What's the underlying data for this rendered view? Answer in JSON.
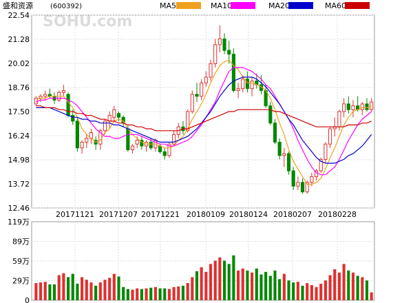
{
  "title": "盛和资源",
  "code": "(600392)",
  "watermark": "SOHU.com",
  "legend": [
    {
      "label": "MA5",
      "color": "#f0a020"
    },
    {
      "label": "MA10",
      "color": "#ff00ff"
    },
    {
      "label": "MA20",
      "color": "#0000cc"
    },
    {
      "label": "MA60",
      "color": "#cc0000"
    }
  ],
  "colors": {
    "up": "#e03030",
    "down": "#008800"
  },
  "chart_data": [
    {
      "type": "candlestick",
      "ylim": [
        12.46,
        22.54
      ],
      "yticks": [
        "22.54",
        "21.28",
        "20.02",
        "18.76",
        "17.50",
        "16.24",
        "14.98",
        "13.72",
        "12.46"
      ],
      "xticks": [
        "20171121",
        "20171207",
        "20171221",
        "20180109",
        "20180124",
        "20180207",
        "20180228"
      ],
      "grid": true,
      "ohlc": [
        [
          17.9,
          18.3,
          17.8,
          18.2
        ],
        [
          18.2,
          18.4,
          18.0,
          18.3
        ],
        [
          18.3,
          18.6,
          18.1,
          18.4
        ],
        [
          18.4,
          18.7,
          18.2,
          18.3
        ],
        [
          18.3,
          18.5,
          17.9,
          18.1
        ],
        [
          18.1,
          18.6,
          18.0,
          18.5
        ],
        [
          18.5,
          18.9,
          18.3,
          18.6
        ],
        [
          18.4,
          18.5,
          17.2,
          17.3
        ],
        [
          17.3,
          17.6,
          16.8,
          17.0
        ],
        [
          17.0,
          17.2,
          15.4,
          15.6
        ],
        [
          15.6,
          16.0,
          15.3,
          15.9
        ],
        [
          15.9,
          16.3,
          15.6,
          16.1
        ],
        [
          16.1,
          16.6,
          15.8,
          16.4
        ],
        [
          16.0,
          16.2,
          15.5,
          15.8
        ],
        [
          15.8,
          16.6,
          15.5,
          16.5
        ],
        [
          16.5,
          17.1,
          16.3,
          17.0
        ],
        [
          17.0,
          17.5,
          16.6,
          17.3
        ],
        [
          17.2,
          17.8,
          17.0,
          17.6
        ],
        [
          17.4,
          17.5,
          17.0,
          17.2
        ],
        [
          17.2,
          17.3,
          16.7,
          16.9
        ],
        [
          16.6,
          16.8,
          15.4,
          15.5
        ],
        [
          15.5,
          15.8,
          15.3,
          15.7
        ],
        [
          15.8,
          16.2,
          15.6,
          16.0
        ],
        [
          16.0,
          16.2,
          15.5,
          15.7
        ],
        [
          15.7,
          16.0,
          15.4,
          15.9
        ],
        [
          15.9,
          16.1,
          15.5,
          15.6
        ],
        [
          15.6,
          16.1,
          15.4,
          16.0
        ],
        [
          15.7,
          15.8,
          15.3,
          15.4
        ],
        [
          15.4,
          15.6,
          15.0,
          15.2
        ],
        [
          15.2,
          15.9,
          15.1,
          15.8
        ],
        [
          15.8,
          16.5,
          15.7,
          16.3
        ],
        [
          16.3,
          16.9,
          16.1,
          16.7
        ],
        [
          16.7,
          17.0,
          16.3,
          16.5
        ],
        [
          16.5,
          17.6,
          16.4,
          17.5
        ],
        [
          17.5,
          18.6,
          17.4,
          18.4
        ],
        [
          18.4,
          19.0,
          18.0,
          18.3
        ],
        [
          18.3,
          19.2,
          18.1,
          19.0
        ],
        [
          19.0,
          19.6,
          18.8,
          19.3
        ],
        [
          19.3,
          20.2,
          19.1,
          20.0
        ],
        [
          20.0,
          21.3,
          19.8,
          21.0
        ],
        [
          21.0,
          22.0,
          20.6,
          21.3
        ],
        [
          21.3,
          21.6,
          20.5,
          20.7
        ],
        [
          20.7,
          21.2,
          20.0,
          20.5
        ],
        [
          20.5,
          20.8,
          18.5,
          18.6
        ],
        [
          18.6,
          19.0,
          18.2,
          18.7
        ],
        [
          18.7,
          19.4,
          18.5,
          19.2
        ],
        [
          19.2,
          19.6,
          18.5,
          18.7
        ],
        [
          18.7,
          19.3,
          18.3,
          19.1
        ],
        [
          19.1,
          19.5,
          18.7,
          18.9
        ],
        [
          18.9,
          19.4,
          18.4,
          18.6
        ],
        [
          18.6,
          18.9,
          17.7,
          17.8
        ],
        [
          17.8,
          18.0,
          16.8,
          16.9
        ],
        [
          16.9,
          17.1,
          15.8,
          15.9
        ],
        [
          15.9,
          16.1,
          15.0,
          15.2
        ],
        [
          15.2,
          15.6,
          14.6,
          15.3
        ],
        [
          15.3,
          15.4,
          14.2,
          14.4
        ],
        [
          14.4,
          14.6,
          13.4,
          13.6
        ],
        [
          13.6,
          14.1,
          13.4,
          13.8
        ],
        [
          13.8,
          14.0,
          13.2,
          13.3
        ],
        [
          13.3,
          13.9,
          13.2,
          13.8
        ],
        [
          13.8,
          14.3,
          13.6,
          14.1
        ],
        [
          14.1,
          14.5,
          13.9,
          14.4
        ],
        [
          14.4,
          15.1,
          14.3,
          15.0
        ],
        [
          15.0,
          15.9,
          14.8,
          15.8
        ],
        [
          15.8,
          16.7,
          15.6,
          16.6
        ],
        [
          16.6,
          17.2,
          16.2,
          16.7
        ],
        [
          16.7,
          17.6,
          16.5,
          17.5
        ],
        [
          17.5,
          18.2,
          17.2,
          17.9
        ],
        [
          17.9,
          18.3,
          17.4,
          17.6
        ],
        [
          17.6,
          18.1,
          17.2,
          17.8
        ],
        [
          17.8,
          18.3,
          17.5,
          17.6
        ],
        [
          17.6,
          18.0,
          17.3,
          17.9
        ],
        [
          17.9,
          18.2,
          17.5,
          17.6
        ],
        [
          17.6,
          18.2,
          17.5,
          18.0
        ]
      ],
      "ma": {
        "MA5": [
          18.1,
          18.2,
          18.2,
          18.3,
          18.3,
          18.3,
          18.3,
          18.0,
          17.7,
          17.2,
          16.6,
          16.3,
          16.1,
          15.9,
          16.0,
          16.4,
          16.6,
          17.0,
          17.1,
          17.0,
          16.6,
          16.3,
          16.1,
          15.9,
          15.8,
          15.8,
          15.8,
          15.7,
          15.6,
          15.6,
          15.7,
          16.0,
          16.2,
          16.6,
          17.1,
          17.5,
          17.9,
          18.4,
          19.0,
          19.5,
          19.9,
          20.1,
          20.2,
          19.9,
          19.7,
          19.3,
          19.0,
          19.0,
          18.9,
          18.8,
          18.6,
          18.2,
          17.6,
          16.9,
          16.3,
          15.5,
          14.9,
          14.5,
          14.1,
          13.7,
          13.7,
          13.8,
          14.0,
          14.5,
          15.1,
          15.6,
          16.2,
          16.8,
          17.2,
          17.5,
          17.6,
          17.7,
          17.7,
          17.8
        ],
        "MA10": [
          18.0,
          18.1,
          18.1,
          18.2,
          18.2,
          18.2,
          18.2,
          18.1,
          18.0,
          17.8,
          17.5,
          17.2,
          16.9,
          16.6,
          16.4,
          16.2,
          16.2,
          16.1,
          16.1,
          16.2,
          16.3,
          16.3,
          16.3,
          16.2,
          16.1,
          16.0,
          15.9,
          15.8,
          15.8,
          15.7,
          15.7,
          15.8,
          15.9,
          16.0,
          16.2,
          16.5,
          16.8,
          17.2,
          17.6,
          18.0,
          18.6,
          19.1,
          19.6,
          19.8,
          19.8,
          19.8,
          19.7,
          19.6,
          19.4,
          19.2,
          18.9,
          18.7,
          18.3,
          17.9,
          17.5,
          17.1,
          16.6,
          16.0,
          15.5,
          15.0,
          14.6,
          14.3,
          14.2,
          14.2,
          14.4,
          14.6,
          15.0,
          15.5,
          16.0,
          16.4,
          16.8,
          17.1,
          17.3,
          17.5
        ],
        "MA20": [
          17.7,
          17.7,
          17.7,
          17.7,
          17.6,
          17.5,
          17.4,
          17.3,
          17.2,
          17.2,
          17.1,
          17.1,
          17.0,
          17.0,
          16.9,
          16.9,
          16.9,
          16.8,
          16.8,
          16.7,
          16.6,
          16.5,
          16.4,
          16.3,
          16.2,
          16.1,
          16.0,
          15.9,
          15.9,
          15.9,
          15.9,
          16.0,
          16.1,
          16.2,
          16.4,
          16.6,
          16.9,
          17.2,
          17.5,
          17.9,
          18.3,
          18.6,
          18.9,
          19.1,
          19.2,
          19.3,
          19.3,
          19.3,
          19.2,
          19.0,
          18.8,
          18.5,
          18.2,
          17.9,
          17.5,
          17.1,
          16.8,
          16.4,
          16.0,
          15.7,
          15.4,
          15.1,
          14.9,
          14.8,
          14.8,
          14.8,
          14.9,
          15.0,
          15.2,
          15.3,
          15.5,
          15.7,
          16.0,
          16.3
        ],
        "MA60": [
          17.8,
          17.8,
          17.7,
          17.7,
          17.7,
          17.6,
          17.6,
          17.5,
          17.5,
          17.4,
          17.4,
          17.3,
          17.3,
          17.2,
          17.1,
          17.1,
          17.0,
          17.0,
          16.9,
          16.9,
          16.8,
          16.8,
          16.7,
          16.7,
          16.6,
          16.6,
          16.5,
          16.5,
          16.5,
          16.5,
          16.5,
          16.5,
          16.6,
          16.6,
          16.7,
          16.8,
          16.9,
          17.0,
          17.1,
          17.2,
          17.3,
          17.4,
          17.5,
          17.5,
          17.6,
          17.6,
          17.6,
          17.6,
          17.6,
          17.6,
          17.6,
          17.6,
          17.5,
          17.5,
          17.4,
          17.3,
          17.2,
          17.1,
          17.0,
          16.9,
          16.8,
          16.7,
          16.7,
          16.7,
          16.7,
          16.7,
          16.7,
          16.7,
          16.8,
          16.8,
          16.8,
          16.9,
          16.9,
          17.0
        ]
      }
    },
    {
      "type": "bar",
      "unit": "万",
      "ylim": [
        0,
        119
      ],
      "yticks": [
        "119万",
        "89万",
        "59万",
        "29万",
        "0"
      ],
      "values": [
        26,
        27,
        28,
        24,
        24,
        38,
        41,
        35,
        40,
        25,
        35,
        31,
        27,
        22,
        27,
        31,
        34,
        40,
        36,
        20,
        17,
        16,
        18,
        17,
        18,
        19,
        20,
        18,
        18,
        17,
        20,
        21,
        22,
        26,
        35,
        44,
        50,
        43,
        55,
        60,
        65,
        60,
        55,
        68,
        45,
        48,
        45,
        42,
        48,
        39,
        43,
        37,
        45,
        32,
        40,
        30,
        27,
        28,
        22,
        26,
        23,
        20,
        25,
        30,
        38,
        47,
        42,
        55,
        45,
        42,
        37,
        35,
        30,
        12
      ]
    }
  ]
}
